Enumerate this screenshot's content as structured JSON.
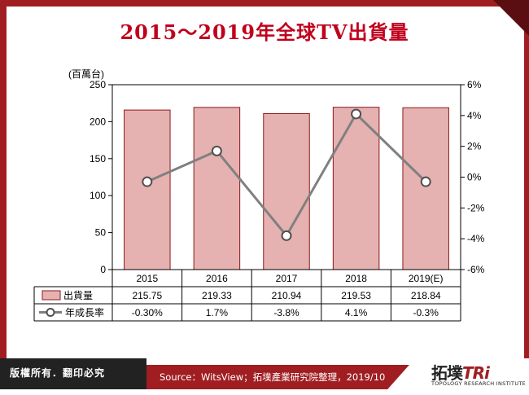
{
  "title": "2015～2019年全球TV出貨量",
  "chart_data": {
    "type": "bar",
    "categories": [
      "2015",
      "2016",
      "2017",
      "2018",
      "2019(E)"
    ],
    "series": [
      {
        "name": "出貨量",
        "type": "bar",
        "axis": "left",
        "values": [
          215.75,
          219.33,
          210.94,
          219.53,
          218.84
        ],
        "labels": [
          "215.75",
          "219.33",
          "210.94",
          "219.53",
          "218.84"
        ],
        "color": "#e6b1b1"
      },
      {
        "name": "年成長率",
        "type": "line",
        "axis": "right",
        "values": [
          -0.3,
          1.7,
          -3.8,
          4.1,
          -0.3
        ],
        "labels": [
          "-0.30%",
          "1.7%",
          "-3.8%",
          "4.1%",
          "-0.3%"
        ],
        "color": "#808080"
      }
    ],
    "y_left": {
      "unit": "(百萬台)",
      "range": [
        0,
        250
      ],
      "ticks": [
        0,
        50,
        100,
        150,
        200,
        250
      ]
    },
    "y_right": {
      "range": [
        -6,
        6
      ],
      "ticks": [
        "-6%",
        "-4%",
        "-2%",
        "0%",
        "2%",
        "4%",
        "6%"
      ],
      "tick_values": [
        -6,
        -4,
        -2,
        0,
        2,
        4,
        6
      ]
    },
    "legend": "data-table-below"
  },
  "footer": {
    "copyright": "版權所有．翻印必究",
    "source": "Source：WitsView；拓墣產業研究院整理，2019/10"
  },
  "logo": {
    "main": "拓墣",
    "accent": "TRi",
    "sub": "TOPOLOGY RESEARCH INSTITUTE"
  },
  "colors": {
    "brand": "#a01e22",
    "title": "#c0001c",
    "bar": "#e6b1b1",
    "bar_border": "#8b1a1a",
    "line": "#808080"
  }
}
